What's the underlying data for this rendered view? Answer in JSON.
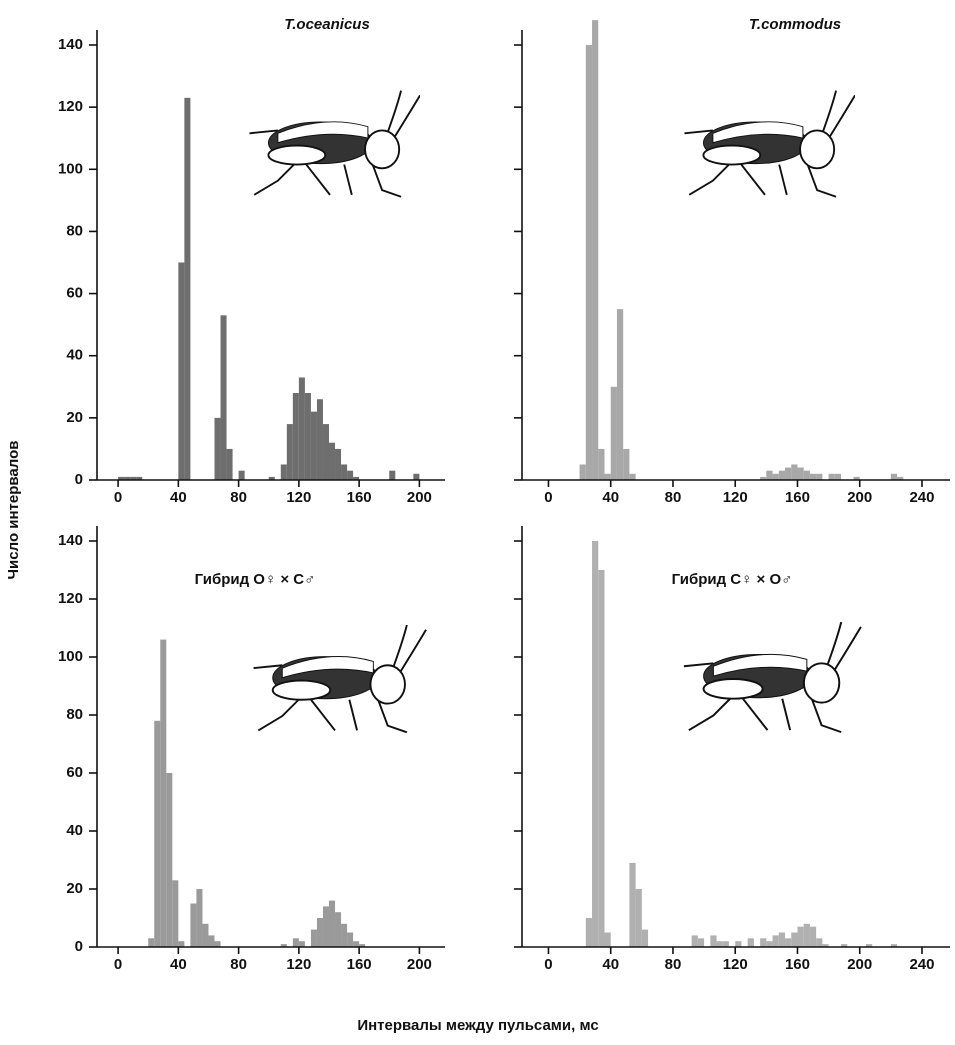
{
  "ylabel": "Число интервалов",
  "xlabel": "Интервалы между пульсами, мс",
  "chart_data": [
    {
      "type": "histogram",
      "title": "T.oceanicus",
      "color": "#6e6e6e",
      "bins": [
        0,
        4,
        8,
        12,
        16,
        20,
        24,
        28,
        32,
        36,
        40,
        44,
        48,
        52,
        56,
        60,
        64,
        68,
        72,
        76,
        80,
        84,
        88,
        92,
        96,
        100,
        104,
        108,
        112,
        116,
        120,
        124,
        128,
        132,
        136,
        140,
        144,
        148,
        152,
        156,
        160,
        164,
        168,
        172,
        176,
        180,
        184,
        188,
        192,
        196,
        200
      ],
      "counts": [
        1,
        1,
        1,
        1,
        0,
        0,
        0,
        0,
        0,
        0,
        70,
        123,
        0,
        0,
        0,
        0,
        20,
        53,
        10,
        0,
        3,
        0,
        0,
        0,
        0,
        1,
        0,
        5,
        18,
        28,
        33,
        28,
        22,
        26,
        18,
        12,
        10,
        5,
        3,
        1,
        0,
        0,
        0,
        0,
        0,
        3,
        0,
        0,
        0,
        2
      ],
      "xlim": [
        -14,
        217
      ],
      "xticks": [
        0,
        40,
        80,
        120,
        160,
        200
      ],
      "ylim": [
        0,
        140
      ],
      "yticks": [
        0,
        20,
        40,
        60,
        80,
        100,
        120,
        140
      ],
      "ytick_labels": true
    },
    {
      "type": "histogram",
      "title": "T.commodus",
      "color": "#a8a8a8",
      "bins": [
        0,
        4,
        8,
        12,
        16,
        20,
        24,
        28,
        32,
        36,
        40,
        44,
        48,
        52,
        56,
        60,
        64,
        68,
        72,
        76,
        80,
        84,
        88,
        92,
        96,
        100,
        104,
        108,
        112,
        116,
        120,
        124,
        128,
        132,
        136,
        140,
        144,
        148,
        152,
        156,
        160,
        164,
        168,
        172,
        176,
        180,
        184,
        188,
        192,
        196,
        200,
        204,
        208,
        212,
        216,
        220,
        224,
        228,
        232,
        236,
        240
      ],
      "counts": [
        0,
        0,
        0,
        0,
        0,
        5,
        140,
        148,
        10,
        2,
        30,
        55,
        10,
        2,
        0,
        0,
        0,
        0,
        0,
        0,
        0,
        0,
        0,
        0,
        0,
        0,
        0,
        0,
        0,
        0,
        0,
        0,
        0,
        0,
        1,
        3,
        2,
        3,
        4,
        5,
        4,
        3,
        2,
        2,
        0,
        2,
        2,
        0,
        0,
        1,
        0,
        0,
        0,
        0,
        0,
        2,
        1,
        0,
        0,
        0
      ],
      "xlim": [
        -17,
        258
      ],
      "xticks": [
        0,
        40,
        80,
        120,
        160,
        200,
        240
      ],
      "ylim": [
        0,
        140
      ],
      "yticks": [
        0,
        20,
        40,
        60,
        80,
        100,
        120,
        140
      ],
      "ytick_labels": false
    },
    {
      "type": "histogram",
      "title": "Гибрид О♀ × С♂",
      "color": "#9a9a9a",
      "bins": [
        0,
        4,
        8,
        12,
        16,
        20,
        24,
        28,
        32,
        36,
        40,
        44,
        48,
        52,
        56,
        60,
        64,
        68,
        72,
        76,
        80,
        84,
        88,
        92,
        96,
        100,
        104,
        108,
        112,
        116,
        120,
        124,
        128,
        132,
        136,
        140,
        144,
        148,
        152,
        156,
        160,
        164,
        168,
        172,
        176,
        180,
        184,
        188,
        192,
        196,
        200
      ],
      "counts": [
        0,
        0,
        0,
        0,
        0,
        3,
        78,
        106,
        60,
        23,
        2,
        0,
        15,
        20,
        8,
        4,
        2,
        0,
        0,
        0,
        0,
        0,
        0,
        0,
        0,
        0,
        0,
        1,
        0,
        3,
        2,
        0,
        6,
        10,
        14,
        16,
        12,
        8,
        5,
        2,
        1,
        0,
        0,
        0,
        0,
        0,
        0,
        0,
        0,
        0
      ],
      "xlim": [
        -14,
        217
      ],
      "xticks": [
        0,
        40,
        80,
        120,
        160,
        200
      ],
      "ylim": [
        0,
        140
      ],
      "yticks": [
        0,
        20,
        40,
        60,
        80,
        100,
        120,
        140
      ],
      "ytick_labels": true
    },
    {
      "type": "histogram",
      "title": "Гибрид С♀ × О♂",
      "color": "#b0b0b0",
      "bins": [
        0,
        4,
        8,
        12,
        16,
        20,
        24,
        28,
        32,
        36,
        40,
        44,
        48,
        52,
        56,
        60,
        64,
        68,
        72,
        76,
        80,
        84,
        88,
        92,
        96,
        100,
        104,
        108,
        112,
        116,
        120,
        124,
        128,
        132,
        136,
        140,
        144,
        148,
        152,
        156,
        160,
        164,
        168,
        172,
        176,
        180,
        184,
        188,
        192,
        196,
        200,
        204,
        208,
        212,
        216,
        220,
        224,
        228,
        232,
        236,
        240
      ],
      "counts": [
        0,
        0,
        0,
        0,
        0,
        0,
        10,
        140,
        130,
        5,
        0,
        0,
        0,
        29,
        20,
        6,
        0,
        0,
        0,
        0,
        0,
        0,
        0,
        4,
        3,
        0,
        4,
        2,
        2,
        0,
        2,
        0,
        3,
        0,
        3,
        2,
        4,
        5,
        3,
        5,
        7,
        8,
        7,
        3,
        1,
        0,
        0,
        1,
        0,
        0,
        0,
        1,
        0,
        0,
        0,
        1,
        0,
        0,
        0,
        0
      ],
      "xlim": [
        -17,
        258
      ],
      "xticks": [
        0,
        40,
        80,
        120,
        160,
        200,
        240
      ],
      "ylim": [
        0,
        140
      ],
      "yticks": [
        0,
        20,
        40,
        60,
        80,
        100,
        120,
        140
      ],
      "ytick_labels": false
    }
  ]
}
